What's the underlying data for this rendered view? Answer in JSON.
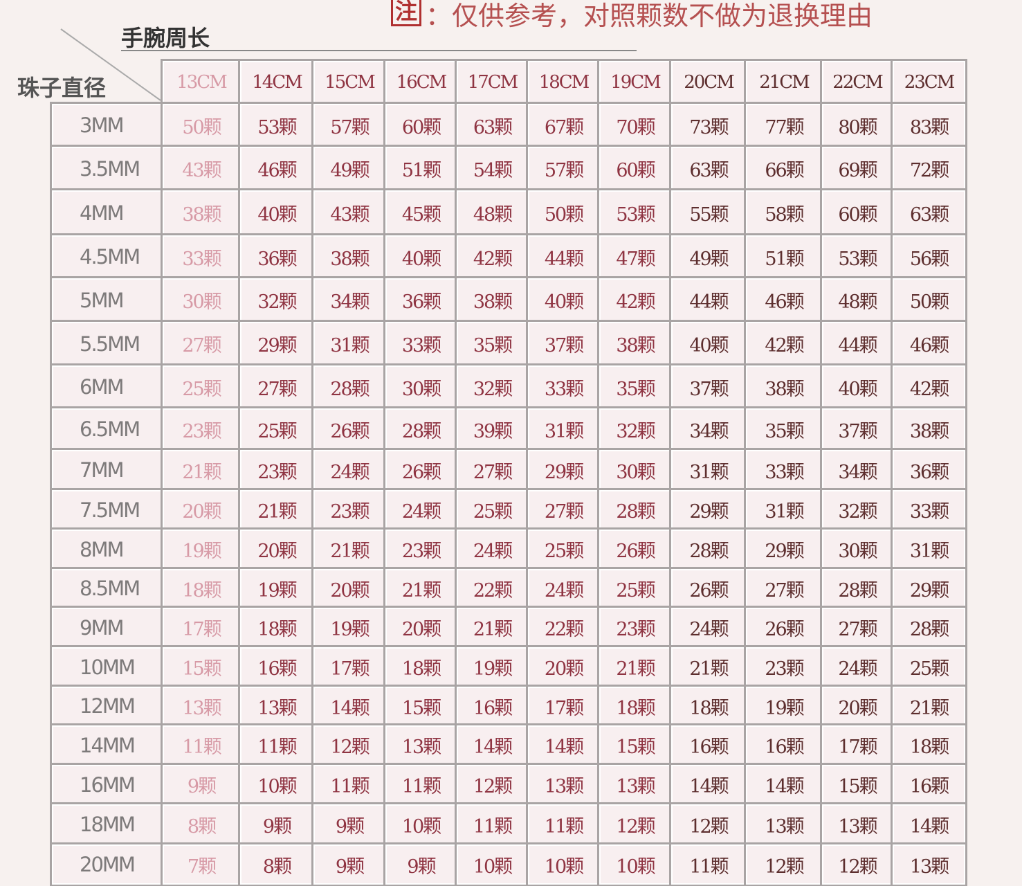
{
  "note": {
    "mark": "注",
    "text": "：仅供参考，对照颗数不做为退换理由"
  },
  "table": {
    "corner_top": "手腕周长",
    "corner_left": "珠子直径",
    "columns": [
      "13CM",
      "14CM",
      "15CM",
      "16CM",
      "17CM",
      "18CM",
      "19CM",
      "20CM",
      "21CM",
      "22CM",
      "23CM"
    ],
    "rows": [
      {
        "label": "3MM",
        "cells": [
          "50颗",
          "53颗",
          "57颗",
          "60颗",
          "63颗",
          "67颗",
          "70颗",
          "73颗",
          "77颗",
          "80颗",
          "83颗"
        ]
      },
      {
        "label": "3.5MM",
        "cells": [
          "43颗",
          "46颗",
          "49颗",
          "51颗",
          "54颗",
          "57颗",
          "60颗",
          "63颗",
          "66颗",
          "69颗",
          "72颗"
        ]
      },
      {
        "label": "4MM",
        "cells": [
          "38颗",
          "40颗",
          "43颗",
          "45颗",
          "48颗",
          "50颗",
          "53颗",
          "55颗",
          "58颗",
          "60颗",
          "63颗"
        ]
      },
      {
        "label": "4.5MM",
        "cells": [
          "33颗",
          "36颗",
          "38颗",
          "40颗",
          "42颗",
          "44颗",
          "47颗",
          "49颗",
          "51颗",
          "53颗",
          "56颗"
        ]
      },
      {
        "label": "5MM",
        "cells": [
          "30颗",
          "32颗",
          "34颗",
          "36颗",
          "38颗",
          "40颗",
          "42颗",
          "44颗",
          "46颗",
          "48颗",
          "50颗"
        ]
      },
      {
        "label": "5.5MM",
        "cells": [
          "27颗",
          "29颗",
          "31颗",
          "33颗",
          "35颗",
          "37颗",
          "38颗",
          "40颗",
          "42颗",
          "44颗",
          "46颗"
        ]
      },
      {
        "label": "6MM",
        "cells": [
          "25颗",
          "27颗",
          "28颗",
          "30颗",
          "32颗",
          "33颗",
          "35颗",
          "37颗",
          "38颗",
          "40颗",
          "42颗"
        ]
      },
      {
        "label": "6.5MM",
        "cells": [
          "23颗",
          "25颗",
          "26颗",
          "28颗",
          "39颗",
          "31颗",
          "32颗",
          "34颗",
          "35颗",
          "37颗",
          "38颗"
        ]
      },
      {
        "label": "7MM",
        "cells": [
          "21颗",
          "23颗",
          "24颗",
          "26颗",
          "27颗",
          "29颗",
          "30颗",
          "31颗",
          "33颗",
          "34颗",
          "36颗"
        ]
      },
      {
        "label": "7.5MM",
        "cells": [
          "20颗",
          "21颗",
          "23颗",
          "24颗",
          "25颗",
          "27颗",
          "28颗",
          "29颗",
          "31颗",
          "32颗",
          "33颗"
        ]
      },
      {
        "label": "8MM",
        "cells": [
          "19颗",
          "20颗",
          "21颗",
          "23颗",
          "24颗",
          "25颗",
          "26颗",
          "28颗",
          "29颗",
          "30颗",
          "31颗"
        ]
      },
      {
        "label": "8.5MM",
        "cells": [
          "18颗",
          "19颗",
          "20颗",
          "21颗",
          "22颗",
          "24颗",
          "25颗",
          "26颗",
          "27颗",
          "28颗",
          "29颗"
        ]
      },
      {
        "label": "9MM",
        "cells": [
          "17颗",
          "18颗",
          "19颗",
          "20颗",
          "21颗",
          "22颗",
          "23颗",
          "24颗",
          "26颗",
          "27颗",
          "28颗"
        ]
      },
      {
        "label": "10MM",
        "cells": [
          "15颗",
          "16颗",
          "17颗",
          "18颗",
          "19颗",
          "20颗",
          "21颗",
          "21颗",
          "23颗",
          "24颗",
          "25颗"
        ]
      },
      {
        "label": "12MM",
        "cells": [
          "13颗",
          "13颗",
          "14颗",
          "15颗",
          "16颗",
          "17颗",
          "18颗",
          "18颗",
          "19颗",
          "20颗",
          "21颗"
        ]
      },
      {
        "label": "14MM",
        "cells": [
          "11颗",
          "11颗",
          "12颗",
          "13颗",
          "14颗",
          "14颗",
          "15颗",
          "16颗",
          "16颗",
          "17颗",
          "18颗"
        ]
      },
      {
        "label": "16MM",
        "cells": [
          "9颗",
          "10颗",
          "11颗",
          "11颗",
          "12颗",
          "13颗",
          "13颗",
          "14颗",
          "14颗",
          "15颗",
          "16颗"
        ]
      },
      {
        "label": "18MM",
        "cells": [
          "8颗",
          "9颗",
          "9颗",
          "10颗",
          "11颗",
          "11颗",
          "12颗",
          "12颗",
          "13颗",
          "13颗",
          "14颗"
        ]
      },
      {
        "label": "20MM",
        "cells": [
          "7颗",
          "8颗",
          "9颗",
          "9颗",
          "10颗",
          "10颗",
          "10颗",
          "11颗",
          "12颗",
          "12颗",
          "13颗"
        ]
      }
    ]
  }
}
